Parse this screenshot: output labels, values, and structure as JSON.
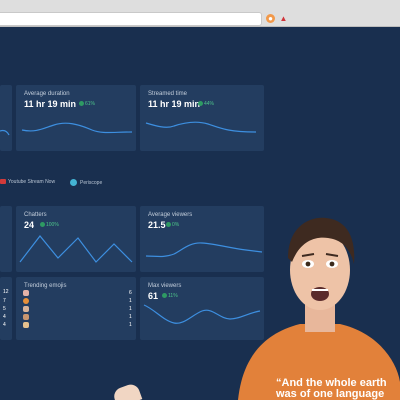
{
  "cards": {
    "avg_duration": {
      "title": "Average duration",
      "value": "11 hr 19 min",
      "change": "61%"
    },
    "streamed_time": {
      "title": "Streamed time",
      "value": "11 hr 19 min",
      "change": "44%"
    },
    "chatters": {
      "title": "Chatters",
      "value": "24",
      "change": "100%"
    },
    "avg_viewers": {
      "title": "Average viewers",
      "value": "21.5",
      "change": "0%"
    },
    "trending": {
      "title": "Trending emojis",
      "left_counts": [
        "12",
        "7",
        "5",
        "4",
        "4"
      ],
      "emoji_counts": [
        "6",
        "1",
        "1",
        "1",
        "1"
      ]
    },
    "max_viewers": {
      "title": "Max viewers",
      "value": "61",
      "change": "11%"
    }
  },
  "platforms": [
    "Youtube Stream Now",
    "Periscope"
  ],
  "shirt_text": {
    "line1": "“And the whole earth",
    "line2": "was of one language"
  },
  "colors": {
    "background": "#192f4f",
    "card": "#233d60",
    "line": "#3d8fe0",
    "positive": "#4ec48a"
  }
}
